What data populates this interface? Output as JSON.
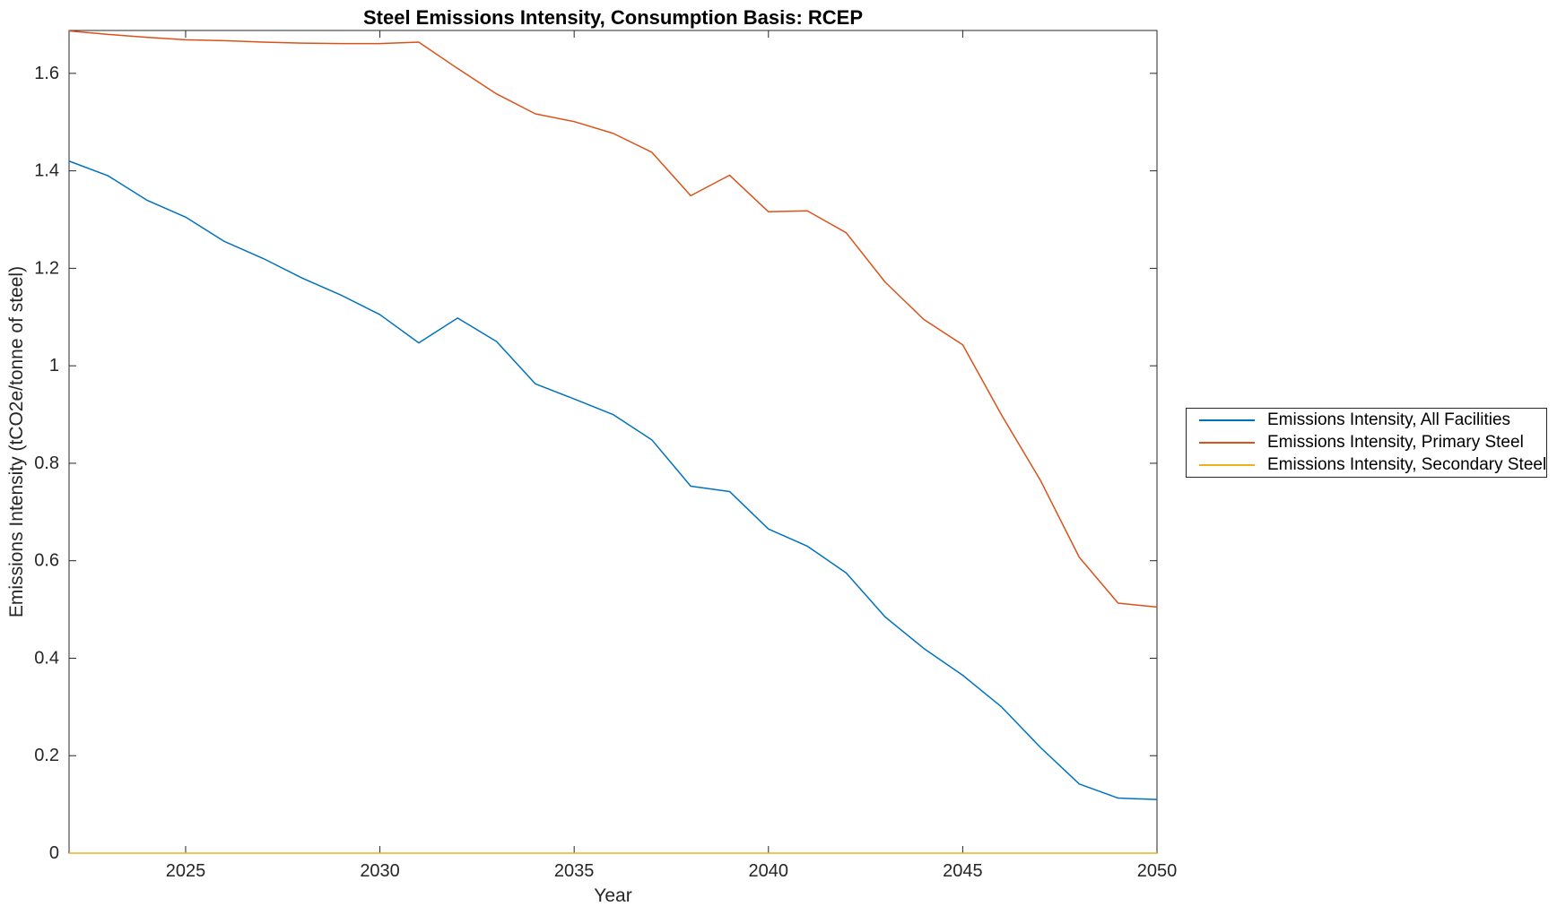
{
  "chart_data": {
    "type": "line",
    "title": "Steel Emissions Intensity, Consumption Basis: RCEP",
    "xlabel": "Year",
    "ylabel": "Emissions Intensity (tCO2e/tonne of steel)",
    "xlim": [
      2022,
      2050
    ],
    "ylim": [
      0,
      1.688
    ],
    "x_ticks": [
      "2025",
      "2030",
      "2035",
      "2040",
      "2045",
      "2050"
    ],
    "y_ticks": [
      "0",
      "0.2",
      "0.4",
      "0.6",
      "0.8",
      "1",
      "1.2",
      "1.4",
      "1.6"
    ],
    "grid": false,
    "box": true,
    "legend_position": "outside-right",
    "axis_color": "#262626",
    "x": [
      2022,
      2023,
      2024,
      2025,
      2026,
      2027,
      2028,
      2029,
      2030,
      2031,
      2032,
      2033,
      2034,
      2035,
      2036,
      2037,
      2038,
      2039,
      2040,
      2041,
      2042,
      2043,
      2044,
      2045,
      2046,
      2047,
      2048,
      2049,
      2050
    ],
    "series": [
      {
        "name": "Emissions Intensity, All Facilities",
        "color": "#0072BD",
        "values": [
          1.42,
          1.39,
          1.34,
          1.305,
          1.255,
          1.22,
          1.18,
          1.145,
          1.105,
          1.047,
          1.098,
          1.05,
          0.963,
          0.932,
          0.9,
          0.848,
          0.753,
          0.742,
          0.665,
          0.63,
          0.575,
          0.485,
          0.42,
          0.365,
          0.3,
          0.217,
          0.142,
          0.113,
          0.11
        ]
      },
      {
        "name": "Emissions Intensity, Primary Steel",
        "color": "#D95319",
        "values": [
          1.687,
          1.68,
          1.674,
          1.669,
          1.667,
          1.664,
          1.662,
          1.661,
          1.661,
          1.664,
          1.61,
          1.558,
          1.517,
          1.501,
          1.477,
          1.438,
          1.349,
          1.391,
          1.316,
          1.318,
          1.273,
          1.172,
          1.095,
          1.043,
          0.899,
          0.765,
          0.607,
          0.513,
          0.505
        ]
      },
      {
        "name": "Emissions Intensity, Secondary Steel",
        "color": "#EDB120",
        "values": [
          0,
          0,
          0,
          0,
          0,
          0,
          0,
          0,
          0,
          0,
          0,
          0,
          0,
          0,
          0,
          0,
          0,
          0,
          0,
          0,
          0,
          0,
          0,
          0,
          0,
          0,
          0,
          0,
          0
        ]
      }
    ]
  }
}
